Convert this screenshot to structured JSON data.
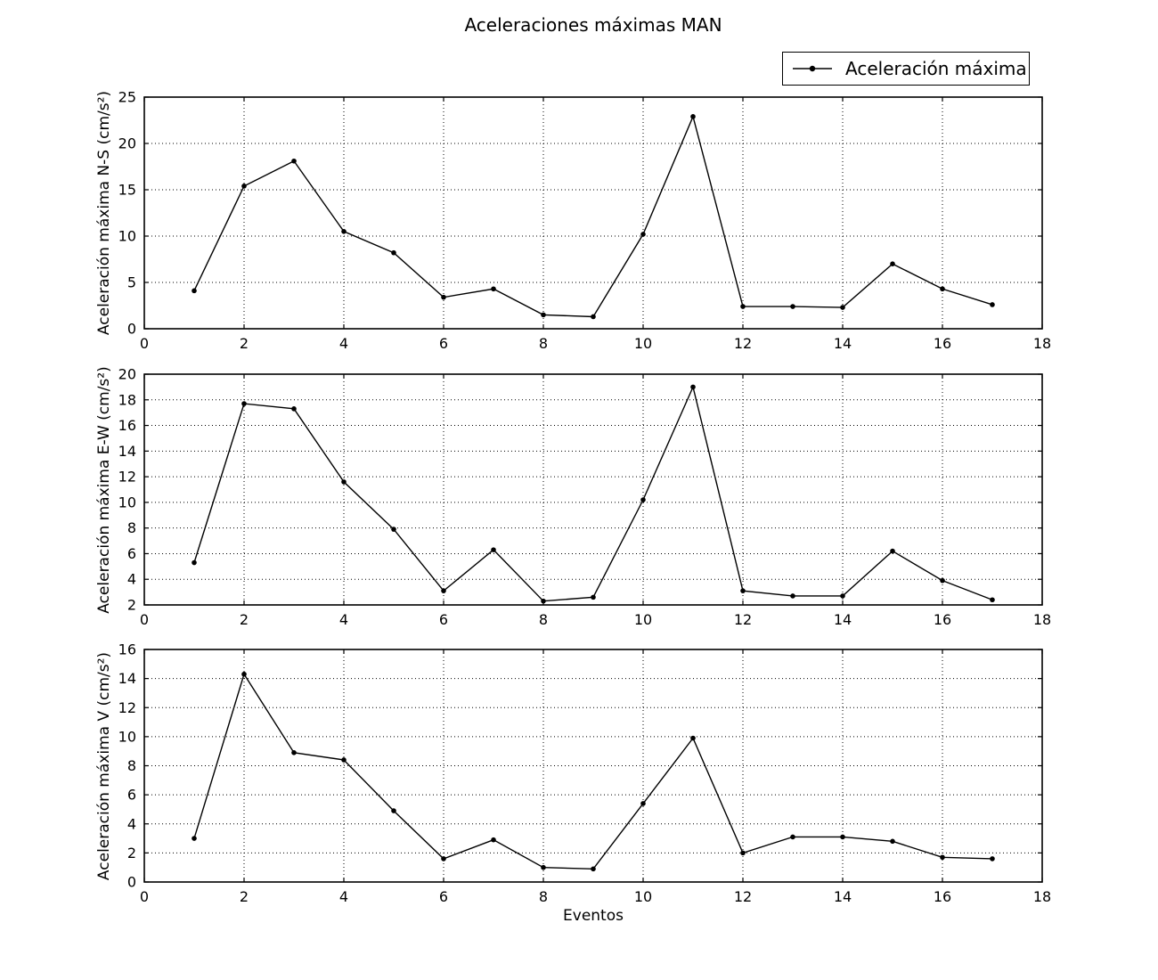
{
  "title": "Aceleraciones máximas MAN",
  "xlabel": "Eventos",
  "legend": {
    "label": "Aceleración máxima",
    "position": "upper right",
    "marker": "line-with-dot"
  },
  "colors": {
    "line": "#000000",
    "grid": "#000000",
    "text": "#000000",
    "background": "#ffffff"
  },
  "chart_data": [
    {
      "id": "ns",
      "type": "line",
      "series_label": "Aceleración máxima",
      "ylabel": "Aceleración máxima N-S (cm/s²)",
      "x": [
        1,
        2,
        3,
        4,
        5,
        6,
        7,
        8,
        9,
        10,
        11,
        12,
        13,
        14,
        15,
        16,
        17
      ],
      "y": [
        4.1,
        15.4,
        18.1,
        10.5,
        8.2,
        3.4,
        4.3,
        1.5,
        1.3,
        10.2,
        22.9,
        2.4,
        2.4,
        2.3,
        7.0,
        4.3,
        2.6
      ],
      "xlim": [
        0,
        18
      ],
      "ylim": [
        0,
        25
      ],
      "xticks": [
        0,
        2,
        4,
        6,
        8,
        10,
        12,
        14,
        16,
        18
      ],
      "yticks": [
        0,
        5,
        10,
        15,
        20,
        25
      ],
      "grid": true,
      "marker": "point",
      "line_color": "#000000"
    },
    {
      "id": "ew",
      "type": "line",
      "series_label": "Aceleración máxima",
      "ylabel": "Aceleración máxima E-W (cm/s²)",
      "x": [
        1,
        2,
        3,
        4,
        5,
        6,
        7,
        8,
        9,
        10,
        11,
        12,
        13,
        14,
        15,
        16,
        17
      ],
      "y": [
        5.3,
        17.7,
        17.3,
        11.6,
        7.9,
        3.1,
        6.3,
        2.3,
        2.6,
        10.2,
        19.0,
        3.1,
        2.7,
        2.7,
        6.2,
        3.9,
        2.4
      ],
      "xlim": [
        0,
        18
      ],
      "ylim": [
        2,
        20
      ],
      "xticks": [
        0,
        2,
        4,
        6,
        8,
        10,
        12,
        14,
        16,
        18
      ],
      "yticks": [
        2,
        4,
        6,
        8,
        10,
        12,
        14,
        16,
        18,
        20
      ],
      "grid": true,
      "marker": "point",
      "line_color": "#000000"
    },
    {
      "id": "v",
      "type": "line",
      "series_label": "Aceleración máxima",
      "ylabel": "Aceleración máxima V (cm/s²)",
      "xlabel": "Eventos",
      "x": [
        1,
        2,
        3,
        4,
        5,
        6,
        7,
        8,
        9,
        10,
        11,
        12,
        13,
        14,
        15,
        16,
        17
      ],
      "y": [
        3.0,
        14.3,
        8.9,
        8.4,
        4.9,
        1.6,
        2.9,
        1.0,
        0.9,
        5.4,
        9.9,
        2.0,
        3.1,
        3.1,
        2.8,
        1.7,
        1.6
      ],
      "xlim": [
        0,
        18
      ],
      "ylim": [
        0,
        16
      ],
      "xticks": [
        0,
        2,
        4,
        6,
        8,
        10,
        12,
        14,
        16,
        18
      ],
      "yticks": [
        0,
        2,
        4,
        6,
        8,
        10,
        12,
        14,
        16
      ],
      "grid": true,
      "marker": "point",
      "line_color": "#000000"
    }
  ]
}
